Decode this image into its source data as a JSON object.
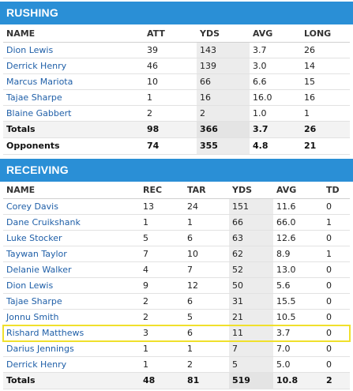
{
  "rushing": {
    "title": "RUSHING",
    "columns": [
      "NAME",
      "ATT",
      "YDS",
      "AVG",
      "LONG"
    ],
    "rows": [
      {
        "name": "Dion Lewis",
        "att": "39",
        "yds": "143",
        "avg": "3.7",
        "long": "26"
      },
      {
        "name": "Derrick Henry",
        "att": "46",
        "yds": "139",
        "avg": "3.0",
        "long": "14"
      },
      {
        "name": "Marcus Mariota",
        "att": "10",
        "yds": "66",
        "avg": "6.6",
        "long": "15"
      },
      {
        "name": "Tajae Sharpe",
        "att": "1",
        "yds": "16",
        "avg": "16.0",
        "long": "16"
      },
      {
        "name": "Blaine Gabbert",
        "att": "2",
        "yds": "2",
        "avg": "1.0",
        "long": "1"
      }
    ],
    "totals": {
      "name": "Totals",
      "att": "98",
      "yds": "366",
      "avg": "3.7",
      "long": "26"
    },
    "opponents": {
      "name": "Opponents",
      "att": "74",
      "yds": "355",
      "avg": "4.8",
      "long": "21"
    }
  },
  "receiving": {
    "title": "RECEIVING",
    "columns": [
      "NAME",
      "REC",
      "TAR",
      "YDS",
      "AVG",
      "TD"
    ],
    "rows": [
      {
        "name": "Corey Davis",
        "rec": "13",
        "tar": "24",
        "yds": "151",
        "avg": "11.6",
        "td": "0"
      },
      {
        "name": "Dane Cruikshank",
        "rec": "1",
        "tar": "1",
        "yds": "66",
        "avg": "66.0",
        "td": "1"
      },
      {
        "name": "Luke Stocker",
        "rec": "5",
        "tar": "6",
        "yds": "63",
        "avg": "12.6",
        "td": "0"
      },
      {
        "name": "Taywan Taylor",
        "rec": "7",
        "tar": "10",
        "yds": "62",
        "avg": "8.9",
        "td": "1"
      },
      {
        "name": "Delanie Walker",
        "rec": "4",
        "tar": "7",
        "yds": "52",
        "avg": "13.0",
        "td": "0"
      },
      {
        "name": "Dion Lewis",
        "rec": "9",
        "tar": "12",
        "yds": "50",
        "avg": "5.6",
        "td": "0"
      },
      {
        "name": "Tajae Sharpe",
        "rec": "2",
        "tar": "6",
        "yds": "31",
        "avg": "15.5",
        "td": "0"
      },
      {
        "name": "Jonnu Smith",
        "rec": "2",
        "tar": "5",
        "yds": "21",
        "avg": "10.5",
        "td": "0"
      },
      {
        "name": "Rishard Matthews",
        "rec": "3",
        "tar": "6",
        "yds": "11",
        "avg": "3.7",
        "td": "0"
      },
      {
        "name": "Darius Jennings",
        "rec": "1",
        "tar": "1",
        "yds": "7",
        "avg": "7.0",
        "td": "0"
      },
      {
        "name": "Derrick Henry",
        "rec": "1",
        "tar": "2",
        "yds": "5",
        "avg": "5.0",
        "td": "0"
      }
    ],
    "totals": {
      "name": "Totals",
      "rec": "48",
      "tar": "81",
      "yds": "519",
      "avg": "10.8",
      "td": "2"
    }
  },
  "colors": {
    "header": "#2a8fd6",
    "link": "#1f5fa8",
    "highlight": "#f0e02c"
  }
}
